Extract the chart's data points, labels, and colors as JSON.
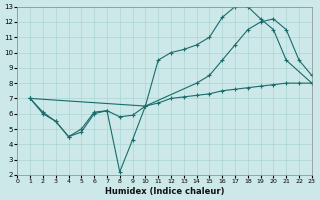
{
  "xlabel": "Humidex (Indice chaleur)",
  "xlim": [
    0,
    23
  ],
  "ylim": [
    2,
    13
  ],
  "xticks": [
    0,
    1,
    2,
    3,
    4,
    5,
    6,
    7,
    8,
    9,
    10,
    11,
    12,
    13,
    14,
    15,
    16,
    17,
    18,
    19,
    20,
    21,
    22,
    23
  ],
  "yticks": [
    2,
    3,
    4,
    5,
    6,
    7,
    8,
    9,
    10,
    11,
    12,
    13
  ],
  "bg_color": "#cce8e8",
  "line_color": "#1a6b6b",
  "grid_color": "#aad4d4",
  "line1_x": [
    1,
    2,
    3,
    4,
    5,
    6,
    7,
    8,
    9,
    10,
    11,
    12,
    13,
    14,
    15,
    16,
    17,
    18,
    19,
    20,
    21,
    23
  ],
  "line1_y": [
    7.0,
    6.0,
    5.5,
    4.5,
    4.8,
    6.0,
    6.2,
    2.2,
    4.3,
    6.5,
    9.5,
    10.0,
    10.2,
    10.5,
    11.0,
    12.3,
    13.0,
    13.0,
    12.2,
    11.5,
    9.5,
    8.0
  ],
  "line2_x": [
    1,
    10,
    14,
    15,
    16,
    17,
    18,
    19,
    20,
    21,
    22,
    23
  ],
  "line2_y": [
    7.0,
    6.5,
    8.0,
    8.5,
    9.5,
    10.5,
    11.5,
    12.0,
    12.2,
    11.5,
    9.5,
    8.5
  ],
  "line3_x": [
    1,
    2,
    3,
    4,
    5,
    6,
    7,
    8,
    9,
    10,
    11,
    12,
    13,
    14,
    15,
    16,
    17,
    18,
    19,
    20,
    21,
    22,
    23
  ],
  "line3_y": [
    7.0,
    6.1,
    5.5,
    4.5,
    5.0,
    6.1,
    6.2,
    5.8,
    5.9,
    6.5,
    6.7,
    7.0,
    7.1,
    7.2,
    7.3,
    7.5,
    7.6,
    7.7,
    7.8,
    7.9,
    8.0,
    8.0,
    8.0
  ]
}
